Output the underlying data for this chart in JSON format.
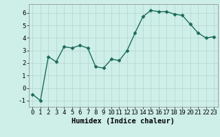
{
  "x": [
    0,
    1,
    2,
    3,
    4,
    5,
    6,
    7,
    8,
    9,
    10,
    11,
    12,
    13,
    14,
    15,
    16,
    17,
    18,
    19,
    20,
    21,
    22,
    23
  ],
  "y": [
    -0.5,
    -1.0,
    2.5,
    2.1,
    3.3,
    3.2,
    3.4,
    3.2,
    1.7,
    1.6,
    2.3,
    2.2,
    3.0,
    4.4,
    5.7,
    6.2,
    6.1,
    6.1,
    5.9,
    5.8,
    5.1,
    4.4,
    4.0,
    4.1
  ],
  "xlabel": "Humidex (Indice chaleur)",
  "ylabel": "",
  "xlim": [
    -0.5,
    23.5
  ],
  "ylim": [
    -1.5,
    6.7
  ],
  "yticks": [
    -1,
    0,
    1,
    2,
    3,
    4,
    5,
    6
  ],
  "xticks": [
    0,
    1,
    2,
    3,
    4,
    5,
    6,
    7,
    8,
    9,
    10,
    11,
    12,
    13,
    14,
    15,
    16,
    17,
    18,
    19,
    20,
    21,
    22,
    23
  ],
  "line_color": "#1a6b5a",
  "marker": "D",
  "marker_size": 2.5,
  "bg_color": "#ceeee8",
  "grid_color": "#b8d8d2"
}
